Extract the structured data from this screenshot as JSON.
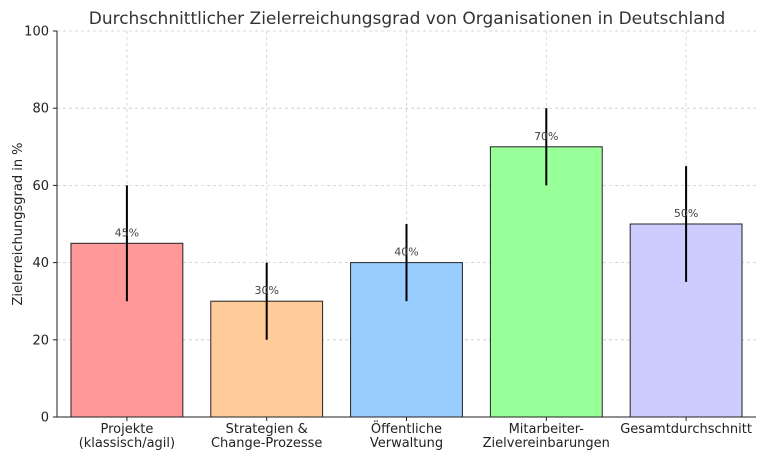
{
  "chart_data": {
    "type": "bar",
    "title": "Durchschnittlicher Zielerreichungsgrad von Organisationen in Deutschland",
    "xlabel": "",
    "ylabel": "Zielerreichungsgrad in %",
    "ylim": [
      0,
      100
    ],
    "yticks": [
      0,
      20,
      40,
      60,
      80,
      100
    ],
    "grid": true,
    "categories": [
      [
        "Projekte",
        "(klassisch/agil)"
      ],
      [
        "Strategien &",
        "Change-Prozesse"
      ],
      [
        "Öffentliche",
        "Verwaltung"
      ],
      [
        "Mitarbeiter-",
        "Zielvereinbarungen"
      ],
      [
        "Gesamtdurchschnitt"
      ]
    ],
    "values": [
      45,
      30,
      40,
      70,
      50
    ],
    "error_low": [
      30,
      20,
      30,
      60,
      35
    ],
    "error_high": [
      60,
      40,
      50,
      80,
      65
    ],
    "data_labels": [
      "45%",
      "30%",
      "40%",
      "70%",
      "50%"
    ],
    "colors": [
      "#ff9999",
      "#ffcc99",
      "#99ccff",
      "#99ff99",
      "#ccccff"
    ]
  }
}
